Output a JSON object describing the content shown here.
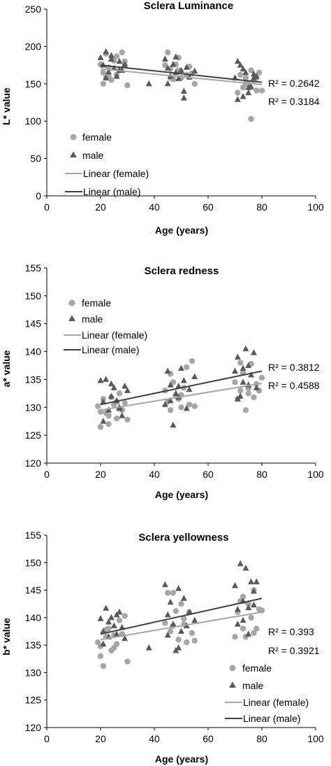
{
  "colors": {
    "female": "#a6a6a6",
    "male": "#595959",
    "female_line": "#a6a6a6",
    "male_line": "#404040"
  },
  "chart_data": [
    {
      "type": "scatter",
      "title": "Sclera Luminance",
      "xlabel": "Age (years)",
      "ylabel": "L* value",
      "xlim": [
        0,
        100
      ],
      "ylim": [
        0,
        250
      ],
      "xticks": [
        0,
        20,
        40,
        60,
        80,
        100
      ],
      "yticks": [
        0,
        50,
        100,
        150,
        200,
        250
      ],
      "legend": [
        "female",
        "male",
        "Linear (female)",
        "Linear (male)"
      ],
      "legend_position": "left",
      "r2": [
        "R² = 0.2642",
        "R² = 0.3184"
      ],
      "series": [
        {
          "name": "female",
          "marker": "circle",
          "x": [
            20,
            21,
            22,
            22,
            23,
            24,
            25,
            26,
            27,
            28,
            29,
            30,
            21,
            23,
            26,
            29,
            45,
            46,
            47,
            48,
            49,
            50,
            52,
            53,
            54,
            55,
            44,
            46,
            49,
            72,
            73,
            74,
            75,
            76,
            77,
            78,
            79,
            80,
            71,
            74,
            76,
            78
          ],
          "y": [
            176,
            165,
            190,
            158,
            172,
            155,
            181,
            162,
            168,
            192,
            175,
            148,
            150,
            160,
            187,
            180,
            192,
            170,
            156,
            176,
            185,
            158,
            162,
            173,
            164,
            150,
            175,
            158,
            168,
            162,
            145,
            158,
            150,
            168,
            155,
            141,
            165,
            141,
            138,
            150,
            103,
            158
          ]
        },
        {
          "name": "male",
          "marker": "triangle",
          "x": [
            20,
            21,
            22,
            23,
            24,
            25,
            26,
            27,
            28,
            29,
            22,
            24,
            27,
            38,
            44,
            45,
            46,
            47,
            48,
            49,
            50,
            51,
            52,
            53,
            55,
            45,
            48,
            51,
            70,
            71,
            72,
            73,
            74,
            75,
            76,
            77,
            78,
            71,
            73,
            75,
            77
          ],
          "y": [
            185,
            175,
            193,
            166,
            188,
            171,
            160,
            180,
            168,
            176,
            158,
            183,
            168,
            150,
            183,
            171,
            160,
            176,
            165,
            157,
            168,
            131,
            172,
            159,
            167,
            150,
            186,
            140,
            158,
            180,
            175,
            133,
            165,
            138,
            146,
            158,
            160,
            129,
            170,
            145,
            163
          ]
        }
      ],
      "fits": [
        {
          "name": "Linear (female)",
          "x": [
            20,
            80
          ],
          "y": [
            170,
            149
          ]
        },
        {
          "name": "Linear (male)",
          "x": [
            20,
            80
          ],
          "y": [
            175,
            152
          ]
        }
      ]
    },
    {
      "type": "scatter",
      "title": "Sclera redness",
      "xlabel": "Age (years)",
      "ylabel": "a* value",
      "xlim": [
        0,
        100
      ],
      "ylim": [
        120,
        155
      ],
      "xticks": [
        0,
        20,
        40,
        60,
        80,
        100
      ],
      "yticks": [
        120,
        125,
        130,
        135,
        140,
        145,
        150,
        155
      ],
      "legend": [
        "female",
        "male",
        "Linear (female)",
        "Linear (male)"
      ],
      "legend_position": "left",
      "r2": [
        "R² = 0.3812",
        "R² = 0.4588"
      ],
      "series": [
        {
          "name": "female",
          "marker": "circle",
          "x": [
            19,
            20,
            21,
            22,
            23,
            24,
            25,
            26,
            27,
            28,
            29,
            30,
            20,
            23,
            26,
            44,
            45,
            46,
            47,
            48,
            49,
            50,
            51,
            52,
            53,
            54,
            55,
            46,
            50,
            70,
            71,
            72,
            73,
            74,
            75,
            76,
            77,
            78,
            79,
            80,
            72,
            75
          ],
          "y": [
            130.2,
            126.5,
            131.5,
            129.0,
            128.5,
            131.8,
            130.5,
            128.0,
            132.5,
            129.5,
            130.8,
            127.8,
            129.2,
            127.0,
            131.0,
            133.0,
            131.0,
            129.5,
            134.5,
            132.0,
            131.5,
            130.0,
            133.5,
            137.2,
            130.5,
            138.3,
            130.2,
            136.0,
            132.2,
            134.5,
            131.5,
            133.0,
            136.2,
            129.5,
            132.5,
            137.8,
            131.8,
            134.2,
            133.0,
            135.3,
            138.0,
            133.4
          ]
        },
        {
          "name": "male",
          "marker": "triangle",
          "x": [
            20,
            21,
            22,
            23,
            24,
            25,
            26,
            27,
            28,
            29,
            21,
            24,
            27,
            30,
            44,
            45,
            46,
            47,
            48,
            49,
            50,
            51,
            52,
            53,
            55,
            46,
            49,
            70,
            71,
            72,
            73,
            74,
            75,
            76,
            77,
            78,
            71,
            73,
            75
          ],
          "y": [
            134.8,
            131.0,
            135.0,
            129.5,
            132.0,
            133.5,
            131.2,
            130.0,
            128.5,
            133.8,
            127.5,
            134.2,
            129.8,
            133.0,
            130.5,
            136.5,
            134.0,
            126.8,
            132.5,
            131.8,
            137.0,
            134.8,
            129.8,
            133.2,
            135.5,
            131.2,
            133.8,
            136.5,
            139.0,
            132.0,
            134.5,
            140.5,
            137.5,
            135.8,
            139.8,
            133.5,
            131.5,
            137.0,
            134.0
          ]
        }
      ],
      "fits": [
        {
          "name": "Linear (female)",
          "x": [
            20,
            80
          ],
          "y": [
            129.5,
            134.3
          ]
        },
        {
          "name": "Linear (male)",
          "x": [
            20,
            80
          ],
          "y": [
            130.5,
            136.5
          ]
        }
      ]
    },
    {
      "type": "scatter",
      "title": "Sclera yellowness",
      "xlabel": "Age (years)",
      "ylabel": "b* value",
      "xlim": [
        0,
        100
      ],
      "ylim": [
        120,
        155
      ],
      "xticks": [
        0,
        20,
        40,
        60,
        80,
        100
      ],
      "yticks": [
        120,
        125,
        130,
        135,
        140,
        145,
        150,
        155
      ],
      "legend": [
        "female",
        "male",
        "Linear (female)",
        "Linear (male)"
      ],
      "legend_position": "bottom-right",
      "r2": [
        "R² = 0.393",
        "R² = 0.3921"
      ],
      "series": [
        {
          "name": "female",
          "marker": "circle",
          "x": [
            19,
            20,
            21,
            22,
            23,
            24,
            25,
            26,
            27,
            28,
            29,
            30,
            20,
            22,
            25,
            44,
            45,
            46,
            47,
            48,
            49,
            50,
            51,
            52,
            53,
            54,
            55,
            47,
            51,
            70,
            71,
            72,
            73,
            74,
            75,
            76,
            77,
            78,
            79,
            80,
            73,
            77
          ],
          "y": [
            135.5,
            133.0,
            131.2,
            136.5,
            138.0,
            134.0,
            136.8,
            135.2,
            139.5,
            137.0,
            140.3,
            132.0,
            134.8,
            137.8,
            134.5,
            139.0,
            144.5,
            137.5,
            138.5,
            141.2,
            136.0,
            142.5,
            139.8,
            135.5,
            141.0,
            137.2,
            135.8,
            144.5,
            138.8,
            136.5,
            141.0,
            143.0,
            138.0,
            136.5,
            142.5,
            140.0,
            137.2,
            138.0,
            141.5,
            141.3,
            143.8,
            145.0
          ]
        },
        {
          "name": "male",
          "marker": "triangle",
          "x": [
            20,
            21,
            22,
            23,
            24,
            25,
            26,
            27,
            28,
            29,
            21,
            23,
            26,
            38,
            44,
            45,
            46,
            47,
            48,
            49,
            50,
            51,
            52,
            53,
            55,
            45,
            49,
            70,
            71,
            72,
            73,
            74,
            75,
            76,
            77,
            78,
            71,
            73,
            75,
            77
          ],
          "y": [
            139.8,
            137.5,
            141.7,
            136.5,
            140.0,
            138.5,
            137.0,
            141.0,
            138.2,
            136.2,
            135.2,
            139.2,
            140.5,
            134.5,
            146.0,
            140.5,
            142.8,
            138.8,
            134.0,
            145.3,
            137.5,
            143.5,
            138.5,
            141.0,
            139.5,
            136.8,
            134.5,
            145.8,
            141.5,
            149.8,
            139.5,
            149.0,
            137.0,
            146.5,
            142.3,
            146.5,
            138.8,
            143.0,
            141.8,
            144.8
          ]
        }
      ],
      "fits": [
        {
          "name": "Linear (female)",
          "x": [
            20,
            80
          ],
          "y": [
            136.0,
            141.0
          ]
        },
        {
          "name": "Linear (male)",
          "x": [
            20,
            80
          ],
          "y": [
            137.0,
            143.5
          ]
        }
      ]
    }
  ]
}
